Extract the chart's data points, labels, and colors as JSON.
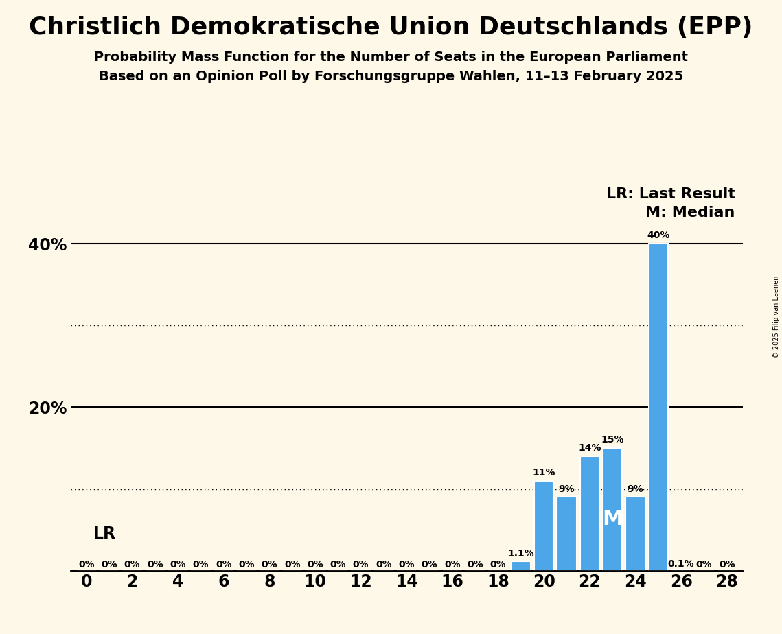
{
  "title": "Christlich Demokratische Union Deutschlands (EPP)",
  "subtitle1": "Probability Mass Function for the Number of Seats in the European Parliament",
  "subtitle2": "Based on an Opinion Poll by Forschungsgruppe Wahlen, 11–13 February 2025",
  "copyright": "© 2025 Filip van Laenen",
  "background_color": "#fdf8e8",
  "bar_color": "#4da6e8",
  "x_min": -0.7,
  "x_max": 28.7,
  "y_min": 0,
  "y_max": 45,
  "yticks": [
    20,
    40
  ],
  "ytick_labels": [
    "20%",
    "40%"
  ],
  "dotted_lines": [
    10,
    30
  ],
  "solid_lines": [
    20,
    40
  ],
  "seats": [
    0,
    1,
    2,
    3,
    4,
    5,
    6,
    7,
    8,
    9,
    10,
    11,
    12,
    13,
    14,
    15,
    16,
    17,
    18,
    19,
    20,
    21,
    22,
    23,
    24,
    25,
    26,
    27,
    28
  ],
  "probabilities": [
    0,
    0,
    0,
    0,
    0,
    0,
    0,
    0,
    0,
    0,
    0,
    0,
    0,
    0,
    0,
    0,
    0,
    0,
    0,
    1.1,
    11,
    9,
    14,
    15,
    9,
    40,
    0.1,
    0,
    0
  ],
  "bar_labels": [
    "0%",
    "0%",
    "0%",
    "0%",
    "0%",
    "0%",
    "0%",
    "0%",
    "0%",
    "0%",
    "0%",
    "0%",
    "0%",
    "0%",
    "0%",
    "0%",
    "0%",
    "0%",
    "0%",
    "1.1%",
    "11%",
    "9%",
    "14%",
    "15%",
    "9%",
    "40%",
    "0.1%",
    "0%",
    "0%"
  ],
  "last_result_seat": 25,
  "median_seat": 23,
  "lr_legend": "LR: Last Result",
  "m_legend": "M: Median",
  "lr_label": "LR",
  "title_fontsize": 26,
  "subtitle_fontsize": 14,
  "tick_fontsize": 17,
  "label_fontsize": 10,
  "legend_fontsize": 16
}
